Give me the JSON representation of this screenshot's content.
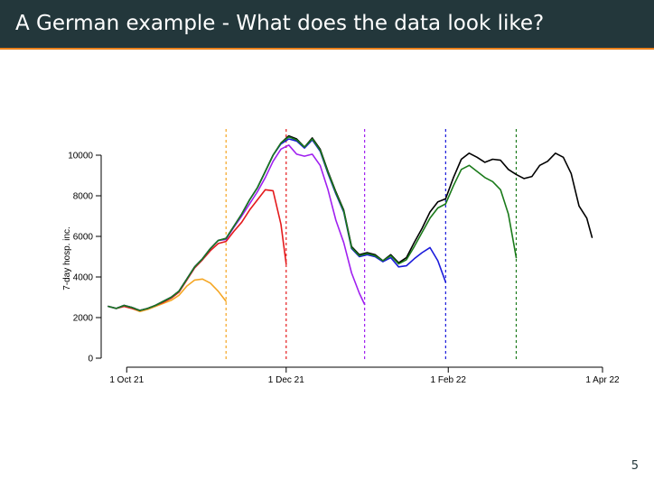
{
  "slide": {
    "title": "A German example - What does the data look like?",
    "page_number": "5"
  },
  "colors": {
    "header_bg": "#23373b",
    "accent_rule": "#eb811b"
  },
  "chart_data": {
    "type": "line",
    "title": "",
    "xlabel": "",
    "ylabel": "7-day hosp. inc.",
    "x_ticks": [
      {
        "label": "1 Oct 21",
        "date": "2021-10-01"
      },
      {
        "label": "1 Dec 21",
        "date": "2021-12-01"
      },
      {
        "label": "1 Feb 22",
        "date": "2022-02-01"
      },
      {
        "label": "1 Apr 22",
        "date": "2022-04-01"
      }
    ],
    "y_ticks": [
      0,
      2000,
      4000,
      6000,
      8000,
      10000
    ],
    "xlim": [
      "2021-09-24",
      "2022-04-01"
    ],
    "ylim": [
      0,
      10000
    ],
    "grid": false,
    "legend": "none",
    "vertical_markers": [
      {
        "date": "2021-11-08",
        "color": "#f5a623"
      },
      {
        "date": "2021-12-01",
        "color": "#e41a1c"
      },
      {
        "date": "2021-12-31",
        "color": "#a020f0"
      },
      {
        "date": "2022-01-31",
        "color": "#1a1adb"
      },
      {
        "date": "2022-02-27",
        "color": "#1a7a1a"
      }
    ],
    "series": [
      {
        "color": "#000000",
        "points": [
          [
            "2021-09-24",
            2550
          ],
          [
            "2021-09-27",
            2450
          ],
          [
            "2021-09-30",
            2600
          ],
          [
            "2021-10-03",
            2500
          ],
          [
            "2021-10-06",
            2350
          ],
          [
            "2021-10-09",
            2450
          ],
          [
            "2021-10-12",
            2600
          ],
          [
            "2021-10-15",
            2800
          ],
          [
            "2021-10-18",
            3000
          ],
          [
            "2021-10-21",
            3300
          ],
          [
            "2021-10-24",
            3900
          ],
          [
            "2021-10-27",
            4500
          ],
          [
            "2021-10-30",
            4900
          ],
          [
            "2021-11-02",
            5400
          ],
          [
            "2021-11-05",
            5800
          ],
          [
            "2021-11-08",
            5900
          ],
          [
            "2021-11-11",
            6500
          ],
          [
            "2021-11-14",
            7100
          ],
          [
            "2021-11-17",
            7800
          ],
          [
            "2021-11-20",
            8400
          ],
          [
            "2021-11-23",
            9200
          ],
          [
            "2021-11-26",
            10000
          ],
          [
            "2021-11-29",
            10600
          ],
          [
            "2021-12-02",
            10950
          ],
          [
            "2021-12-05",
            10800
          ],
          [
            "2021-12-08",
            10400
          ],
          [
            "2021-12-11",
            10850
          ],
          [
            "2021-12-14",
            10300
          ],
          [
            "2021-12-17",
            9200
          ],
          [
            "2021-12-20",
            8200
          ],
          [
            "2021-12-23",
            7300
          ],
          [
            "2021-12-26",
            5500
          ],
          [
            "2021-12-29",
            5100
          ],
          [
            "2022-01-01",
            5200
          ],
          [
            "2022-01-04",
            5100
          ],
          [
            "2022-01-07",
            4800
          ],
          [
            "2022-01-10",
            5100
          ],
          [
            "2022-01-13",
            4700
          ],
          [
            "2022-01-16",
            4950
          ],
          [
            "2022-01-19",
            5700
          ],
          [
            "2022-01-22",
            6400
          ],
          [
            "2022-01-25",
            7200
          ],
          [
            "2022-01-28",
            7700
          ],
          [
            "2022-01-31",
            7850
          ],
          [
            "2022-02-03",
            8900
          ],
          [
            "2022-02-06",
            9800
          ],
          [
            "2022-02-09",
            10100
          ],
          [
            "2022-02-12",
            9900
          ],
          [
            "2022-02-15",
            9650
          ],
          [
            "2022-02-18",
            9800
          ],
          [
            "2022-02-21",
            9750
          ],
          [
            "2022-02-24",
            9300
          ],
          [
            "2022-02-27",
            9050
          ],
          [
            "2022-03-02",
            8850
          ],
          [
            "2022-03-05",
            8950
          ],
          [
            "2022-03-08",
            9500
          ],
          [
            "2022-03-11",
            9700
          ],
          [
            "2022-03-14",
            10100
          ],
          [
            "2022-03-17",
            9900
          ],
          [
            "2022-03-20",
            9100
          ],
          [
            "2022-03-23",
            7500
          ],
          [
            "2022-03-26",
            6900
          ],
          [
            "2022-03-28",
            5950
          ]
        ]
      },
      {
        "color": "#f5a623",
        "points": [
          [
            "2021-09-24",
            2550
          ],
          [
            "2021-09-27",
            2450
          ],
          [
            "2021-09-30",
            2550
          ],
          [
            "2021-10-03",
            2450
          ],
          [
            "2021-10-06",
            2300
          ],
          [
            "2021-10-09",
            2400
          ],
          [
            "2021-10-12",
            2550
          ],
          [
            "2021-10-15",
            2700
          ],
          [
            "2021-10-18",
            2850
          ],
          [
            "2021-10-21",
            3100
          ],
          [
            "2021-10-24",
            3550
          ],
          [
            "2021-10-27",
            3850
          ],
          [
            "2021-10-30",
            3900
          ],
          [
            "2021-11-02",
            3700
          ],
          [
            "2021-11-05",
            3300
          ],
          [
            "2021-11-08",
            2800
          ]
        ]
      },
      {
        "color": "#e41a1c",
        "points": [
          [
            "2021-09-24",
            2550
          ],
          [
            "2021-09-27",
            2450
          ],
          [
            "2021-09-30",
            2550
          ],
          [
            "2021-10-03",
            2450
          ],
          [
            "2021-10-06",
            2350
          ],
          [
            "2021-10-09",
            2450
          ],
          [
            "2021-10-12",
            2600
          ],
          [
            "2021-10-15",
            2750
          ],
          [
            "2021-10-18",
            2950
          ],
          [
            "2021-10-21",
            3250
          ],
          [
            "2021-10-24",
            3850
          ],
          [
            "2021-10-27",
            4450
          ],
          [
            "2021-10-30",
            4850
          ],
          [
            "2021-11-02",
            5300
          ],
          [
            "2021-11-05",
            5650
          ],
          [
            "2021-11-08",
            5750
          ],
          [
            "2021-11-11",
            6250
          ],
          [
            "2021-11-14",
            6700
          ],
          [
            "2021-11-17",
            7300
          ],
          [
            "2021-11-20",
            7800
          ],
          [
            "2021-11-23",
            8300
          ],
          [
            "2021-11-26",
            8250
          ],
          [
            "2021-11-29",
            6600
          ],
          [
            "2021-12-01",
            4650
          ]
        ]
      },
      {
        "color": "#a020f0",
        "points": [
          [
            "2021-09-24",
            2550
          ],
          [
            "2021-09-27",
            2450
          ],
          [
            "2021-09-30",
            2600
          ],
          [
            "2021-10-03",
            2500
          ],
          [
            "2021-10-06",
            2350
          ],
          [
            "2021-10-09",
            2450
          ],
          [
            "2021-10-12",
            2600
          ],
          [
            "2021-10-15",
            2800
          ],
          [
            "2021-10-18",
            3000
          ],
          [
            "2021-10-21",
            3300
          ],
          [
            "2021-10-24",
            3900
          ],
          [
            "2021-10-27",
            4500
          ],
          [
            "2021-10-30",
            4900
          ],
          [
            "2021-11-02",
            5400
          ],
          [
            "2021-11-05",
            5800
          ],
          [
            "2021-11-08",
            5850
          ],
          [
            "2021-11-11",
            6450
          ],
          [
            "2021-11-14",
            7000
          ],
          [
            "2021-11-17",
            7600
          ],
          [
            "2021-11-20",
            8200
          ],
          [
            "2021-11-23",
            8900
          ],
          [
            "2021-11-26",
            9700
          ],
          [
            "2021-11-29",
            10300
          ],
          [
            "2021-12-02",
            10500
          ],
          [
            "2021-12-05",
            10050
          ],
          [
            "2021-12-08",
            9950
          ],
          [
            "2021-12-11",
            10050
          ],
          [
            "2021-12-14",
            9500
          ],
          [
            "2021-12-17",
            8300
          ],
          [
            "2021-12-20",
            6800
          ],
          [
            "2021-12-23",
            5700
          ],
          [
            "2021-12-26",
            4200
          ],
          [
            "2021-12-29",
            3200
          ],
          [
            "2021-12-31",
            2650
          ]
        ]
      },
      {
        "color": "#1a1adb",
        "points": [
          [
            "2021-09-24",
            2550
          ],
          [
            "2021-09-27",
            2450
          ],
          [
            "2021-09-30",
            2600
          ],
          [
            "2021-10-03",
            2500
          ],
          [
            "2021-10-06",
            2350
          ],
          [
            "2021-10-09",
            2450
          ],
          [
            "2021-10-12",
            2600
          ],
          [
            "2021-10-15",
            2800
          ],
          [
            "2021-10-18",
            3000
          ],
          [
            "2021-10-21",
            3300
          ],
          [
            "2021-10-24",
            3900
          ],
          [
            "2021-10-27",
            4500
          ],
          [
            "2021-10-30",
            4900
          ],
          [
            "2021-11-02",
            5400
          ],
          [
            "2021-11-05",
            5800
          ],
          [
            "2021-11-08",
            5900
          ],
          [
            "2021-11-11",
            6500
          ],
          [
            "2021-11-14",
            7100
          ],
          [
            "2021-11-17",
            7800
          ],
          [
            "2021-11-20",
            8400
          ],
          [
            "2021-11-23",
            9200
          ],
          [
            "2021-11-26",
            10000
          ],
          [
            "2021-11-29",
            10550
          ],
          [
            "2021-12-02",
            10800
          ],
          [
            "2021-12-05",
            10700
          ],
          [
            "2021-12-08",
            10350
          ],
          [
            "2021-12-11",
            10750
          ],
          [
            "2021-12-14",
            10200
          ],
          [
            "2021-12-17",
            9100
          ],
          [
            "2021-12-20",
            8100
          ],
          [
            "2021-12-23",
            7200
          ],
          [
            "2021-12-26",
            5400
          ],
          [
            "2021-12-29",
            5000
          ],
          [
            "2022-01-01",
            5100
          ],
          [
            "2022-01-04",
            5000
          ],
          [
            "2022-01-07",
            4750
          ],
          [
            "2022-01-10",
            4950
          ],
          [
            "2022-01-13",
            4500
          ],
          [
            "2022-01-16",
            4550
          ],
          [
            "2022-01-19",
            4900
          ],
          [
            "2022-01-22",
            5200
          ],
          [
            "2022-01-25",
            5450
          ],
          [
            "2022-01-28",
            4800
          ],
          [
            "2022-01-31",
            3750
          ]
        ]
      },
      {
        "color": "#1a7a1a",
        "points": [
          [
            "2021-09-24",
            2550
          ],
          [
            "2021-09-27",
            2450
          ],
          [
            "2021-09-30",
            2600
          ],
          [
            "2021-10-03",
            2500
          ],
          [
            "2021-10-06",
            2350
          ],
          [
            "2021-10-09",
            2450
          ],
          [
            "2021-10-12",
            2600
          ],
          [
            "2021-10-15",
            2800
          ],
          [
            "2021-10-18",
            3000
          ],
          [
            "2021-10-21",
            3300
          ],
          [
            "2021-10-24",
            3900
          ],
          [
            "2021-10-27",
            4500
          ],
          [
            "2021-10-30",
            4900
          ],
          [
            "2021-11-02",
            5400
          ],
          [
            "2021-11-05",
            5800
          ],
          [
            "2021-11-08",
            5900
          ],
          [
            "2021-11-11",
            6500
          ],
          [
            "2021-11-14",
            7100
          ],
          [
            "2021-11-17",
            7800
          ],
          [
            "2021-11-20",
            8400
          ],
          [
            "2021-11-23",
            9200
          ],
          [
            "2021-11-26",
            10000
          ],
          [
            "2021-11-29",
            10600
          ],
          [
            "2021-12-02",
            10900
          ],
          [
            "2021-12-05",
            10750
          ],
          [
            "2021-12-08",
            10400
          ],
          [
            "2021-12-11",
            10800
          ],
          [
            "2021-12-14",
            10250
          ],
          [
            "2021-12-17",
            9150
          ],
          [
            "2021-12-20",
            8150
          ],
          [
            "2021-12-23",
            7250
          ],
          [
            "2021-12-26",
            5450
          ],
          [
            "2021-12-29",
            5050
          ],
          [
            "2022-01-01",
            5150
          ],
          [
            "2022-01-04",
            5050
          ],
          [
            "2022-01-07",
            4800
          ],
          [
            "2022-01-10",
            5050
          ],
          [
            "2022-01-13",
            4650
          ],
          [
            "2022-01-16",
            4850
          ],
          [
            "2022-01-19",
            5500
          ],
          [
            "2022-01-22",
            6200
          ],
          [
            "2022-01-25",
            6900
          ],
          [
            "2022-01-28",
            7400
          ],
          [
            "2022-01-31",
            7600
          ],
          [
            "2022-02-03",
            8500
          ],
          [
            "2022-02-06",
            9300
          ],
          [
            "2022-02-09",
            9500
          ],
          [
            "2022-02-12",
            9200
          ],
          [
            "2022-02-15",
            8900
          ],
          [
            "2022-02-18",
            8700
          ],
          [
            "2022-02-21",
            8300
          ],
          [
            "2022-02-24",
            7100
          ],
          [
            "2022-02-27",
            4950
          ]
        ]
      }
    ]
  }
}
